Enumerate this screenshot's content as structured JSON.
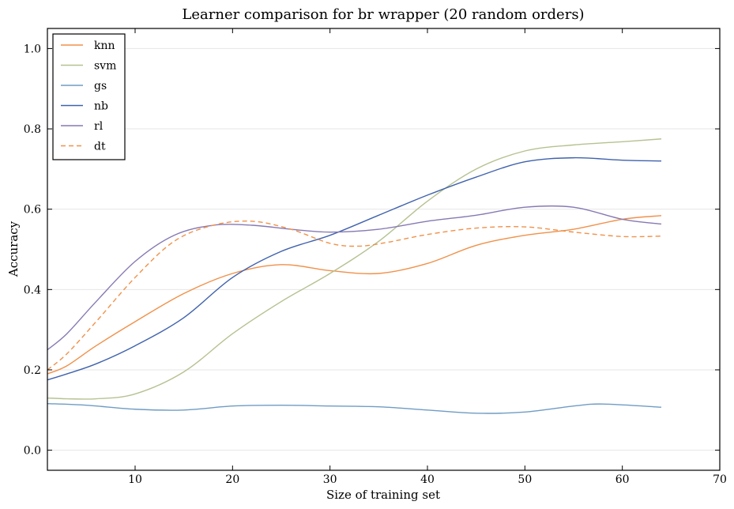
{
  "chart_data": {
    "type": "line",
    "title": "Learner comparison for br wrapper (20 random orders)",
    "xlabel": "Size of training set",
    "ylabel": "Accuracy",
    "xlim": [
      1,
      70
    ],
    "ylim": [
      -0.05,
      1.05
    ],
    "xticks": [
      10,
      20,
      30,
      40,
      50,
      60,
      70
    ],
    "yticks": [
      0.0,
      0.2,
      0.4,
      0.6,
      0.8,
      1.0
    ],
    "ytick_labels": [
      "0.0",
      "0.2",
      "0.4",
      "0.6",
      "0.8",
      "1.0"
    ],
    "grid": "horizontal",
    "legend_position": "top-left",
    "series": [
      {
        "name": "knn",
        "color": "#f0914a",
        "dash": "solid",
        "x": [
          1,
          3,
          6,
          10,
          15,
          20,
          25,
          30,
          35,
          40,
          45,
          50,
          55,
          60,
          64
        ],
        "y": [
          0.19,
          0.21,
          0.26,
          0.32,
          0.39,
          0.44,
          0.462,
          0.447,
          0.44,
          0.465,
          0.51,
          0.535,
          0.55,
          0.575,
          0.584
        ]
      },
      {
        "name": "svm",
        "color": "#b5c291",
        "dash": "solid",
        "x": [
          1,
          3,
          6,
          10,
          15,
          20,
          25,
          30,
          35,
          40,
          45,
          50,
          55,
          60,
          64
        ],
        "y": [
          0.13,
          0.128,
          0.128,
          0.14,
          0.195,
          0.29,
          0.37,
          0.44,
          0.52,
          0.62,
          0.7,
          0.745,
          0.76,
          0.768,
          0.775
        ]
      },
      {
        "name": "gs",
        "color": "#6f9cc4",
        "dash": "solid",
        "x": [
          1,
          5,
          10,
          15,
          20,
          25,
          30,
          35,
          40,
          45,
          50,
          55,
          58,
          64
        ],
        "y": [
          0.116,
          0.112,
          0.102,
          0.1,
          0.11,
          0.112,
          0.11,
          0.108,
          0.1,
          0.092,
          0.095,
          0.11,
          0.115,
          0.107
        ]
      },
      {
        "name": "nb",
        "color": "#4062ad",
        "dash": "solid",
        "x": [
          1,
          3,
          6,
          10,
          15,
          20,
          25,
          30,
          35,
          40,
          45,
          50,
          55,
          60,
          64
        ],
        "y": [
          0.175,
          0.19,
          0.215,
          0.26,
          0.33,
          0.43,
          0.495,
          0.535,
          0.585,
          0.635,
          0.68,
          0.718,
          0.728,
          0.722,
          0.72
        ]
      },
      {
        "name": "rl",
        "color": "#8779b4",
        "dash": "solid",
        "x": [
          1,
          3,
          6,
          10,
          14,
          18,
          22,
          26,
          30,
          35,
          40,
          45,
          50,
          55,
          60,
          64
        ],
        "y": [
          0.25,
          0.29,
          0.37,
          0.47,
          0.535,
          0.56,
          0.56,
          0.55,
          0.543,
          0.55,
          0.57,
          0.585,
          0.605,
          0.605,
          0.575,
          0.563
        ]
      },
      {
        "name": "dt",
        "color": "#f0914a",
        "dash": "dashed",
        "x": [
          1,
          3,
          6,
          10,
          14,
          18,
          22,
          26,
          30,
          33,
          36,
          40,
          45,
          50,
          55,
          60,
          64
        ],
        "y": [
          0.2,
          0.24,
          0.32,
          0.43,
          0.52,
          0.56,
          0.57,
          0.55,
          0.515,
          0.508,
          0.518,
          0.537,
          0.553,
          0.556,
          0.543,
          0.532,
          0.533
        ]
      }
    ]
  }
}
